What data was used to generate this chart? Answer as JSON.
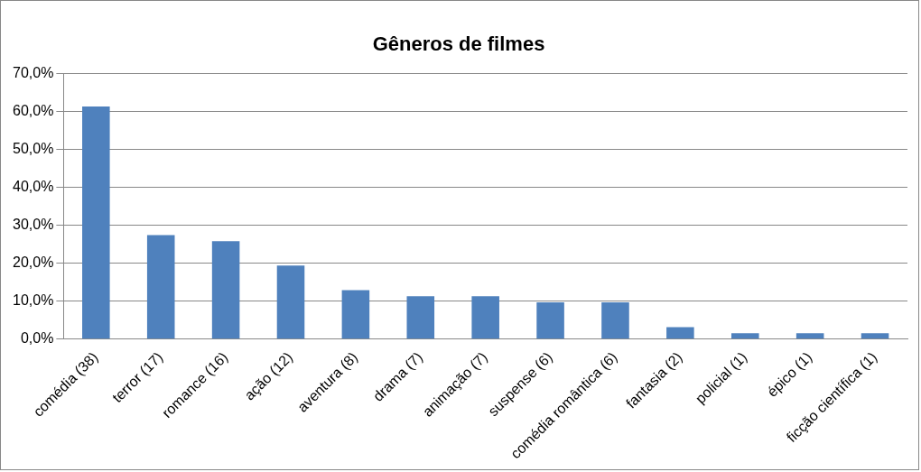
{
  "chart_data": {
    "type": "bar",
    "title": "Gêneros de filmes",
    "categories": [
      "comédia (38)",
      "terror (17)",
      "romance (16)",
      "ação (12)",
      "aventura (8)",
      "drama (7)",
      "animação (7)",
      "suspense (6)",
      "comédia romântica (6)",
      "fantasia (2)",
      "policial (1)",
      "épico (1)",
      "ficção científica (1)"
    ],
    "values": [
      61.3,
      27.4,
      25.8,
      19.4,
      12.9,
      11.3,
      11.3,
      9.7,
      9.7,
      3.2,
      1.6,
      1.6,
      1.6
    ],
    "color": "#4f81bd",
    "ylim": [
      0,
      70
    ],
    "yticks": [
      {
        "value": 0,
        "label": "0,0%"
      },
      {
        "value": 10,
        "label": "10,0%"
      },
      {
        "value": 20,
        "label": "20,0%"
      },
      {
        "value": 30,
        "label": "30,0%"
      },
      {
        "value": 40,
        "label": "40,0%"
      },
      {
        "value": 50,
        "label": "50,0%"
      },
      {
        "value": 60,
        "label": "60,0%"
      },
      {
        "value": 70,
        "label": "70,0%"
      }
    ],
    "grid": "y",
    "legend": false
  }
}
